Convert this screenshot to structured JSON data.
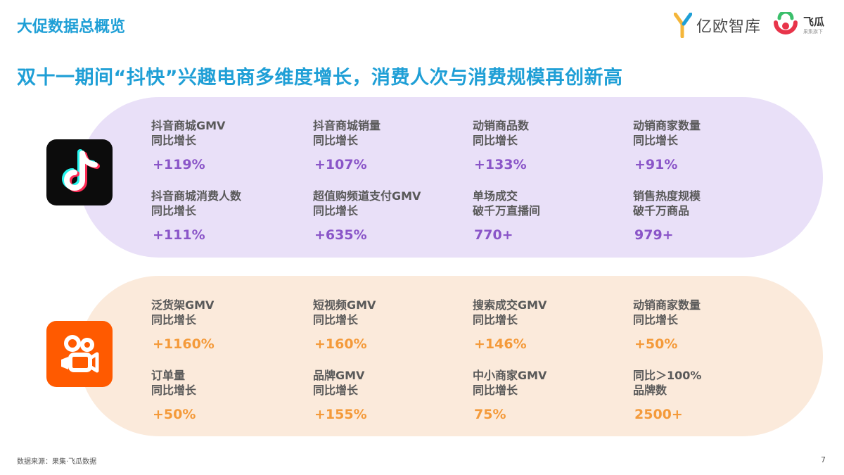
{
  "header": {
    "section_title": "大促数据总概览",
    "headline": "双十一期间“抖快”兴趣电商多维度增长，消费人次与消费规模再创新高"
  },
  "logos": {
    "yiou_text": "亿欧智库",
    "feigua_text": "飞瓜",
    "feigua_sub": "果集旗下"
  },
  "douyin": {
    "icon": "tiktok-icon",
    "accent_color": "#8a55c8",
    "panel_color": "#e9e0f8",
    "stats": [
      {
        "line1": "抖音商城GMV",
        "line2": "同比增长",
        "value": "+119%"
      },
      {
        "line1": "抖音商城销量",
        "line2": "同比增长",
        "value": "+107%"
      },
      {
        "line1": "动销商品数",
        "line2": "同比增长",
        "value": "+133%"
      },
      {
        "line1": "动销商家数量",
        "line2": "同比增长",
        "value": "+91%"
      },
      {
        "line1": "抖音商城消费人数",
        "line2": "同比增长",
        "value": "+111%"
      },
      {
        "line1": "超值购频道支付GMV",
        "line2": "同比增长",
        "value": "+635%"
      },
      {
        "line1": "单场成交",
        "line2": "破千万直播间",
        "value": "770+"
      },
      {
        "line1": "销售热度规模",
        "line2": "破千万商品",
        "value": "979+"
      }
    ]
  },
  "kuaishou": {
    "icon": "kuaishou-icon",
    "accent_color": "#f49a3a",
    "panel_color": "#fbeadb",
    "stats": [
      {
        "line1": "泛货架GMV",
        "line2": "同比增长",
        "value": "+1160%"
      },
      {
        "line1": "短视频GMV",
        "line2": "同比增长",
        "value": "+160%"
      },
      {
        "line1": "搜索成交GMV",
        "line2": "同比增长",
        "value": "+146%"
      },
      {
        "line1": "动销商家数量",
        "line2": "同比增长",
        "value": "+50%"
      },
      {
        "line1": "订单量",
        "line2": "同比增长",
        "value": "+50%"
      },
      {
        "line1": "品牌GMV",
        "line2": "同比增长",
        "value": "+155%"
      },
      {
        "line1": "中小商家GMV",
        "line2": "同比增长",
        "value": "75%"
      },
      {
        "line1": "同比＞100%",
        "line2": "品牌数",
        "value": "2500+"
      }
    ]
  },
  "footer": {
    "source": "数据来源：果集·飞瓜数据",
    "page_number": "7"
  }
}
